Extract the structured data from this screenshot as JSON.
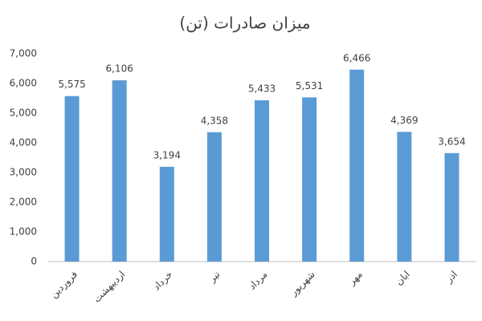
{
  "chart_data": {
    "type": "bar",
    "title": "میزان صادرات (تن)",
    "categories": [
      "فروردین",
      "اردیبهشت",
      "خرداد",
      "تیر",
      "مرداد",
      "شهریور",
      "مهر",
      "ابان",
      "اذر"
    ],
    "values": [
      5575,
      6106,
      3194,
      4358,
      5433,
      5531,
      6466,
      4369,
      3654
    ],
    "value_labels": [
      "5,575",
      "6,106",
      "3,194",
      "4,358",
      "5,433",
      "5,531",
      "6,466",
      "4,369",
      "3,654"
    ],
    "color": "#5b9bd5",
    "ylim": [
      0,
      7000
    ],
    "yticks": [
      0,
      {
        "value": 1000,
        "label": "1,000"
      },
      {
        "value": 2000,
        "label": "2,000"
      },
      {
        "value": 3000,
        "label": "3,000"
      },
      {
        "value": 4000,
        "label": "4,000"
      },
      {
        "value": 5000,
        "label": "5,000"
      },
      {
        "value": 6000,
        "label": "6,000"
      },
      {
        "value": 7000,
        "label": "7,000"
      }
    ],
    "grid": false
  }
}
